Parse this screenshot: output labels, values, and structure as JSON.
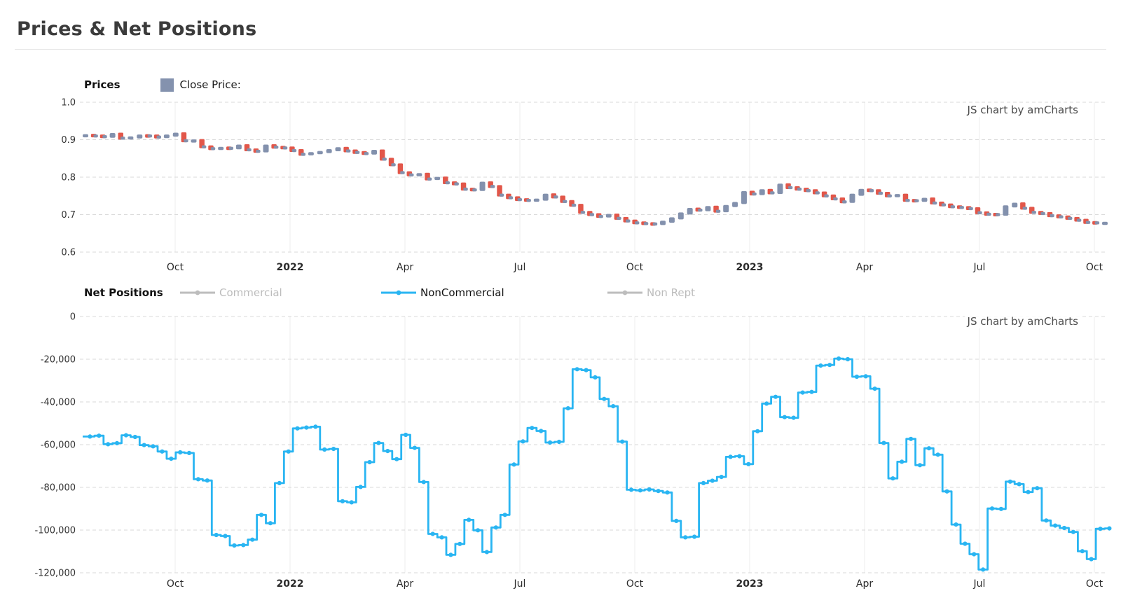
{
  "page": {
    "title": "Prices & Net Positions"
  },
  "watermark_label": "JS chart by amCharts",
  "price_chart": {
    "label": "Prices",
    "legend": [
      {
        "label": "Close Price:",
        "color": "#8492ae"
      }
    ],
    "chart_data": {
      "type": "candlestick",
      "title": "Prices",
      "x_tick_labels": [
        "Oct",
        "2022",
        "Apr",
        "Jul",
        "Oct",
        "2023",
        "Apr",
        "Jul",
        "Oct"
      ],
      "y_ticks": [
        1.0,
        0.9,
        0.8,
        0.7,
        0.6
      ],
      "y_tick_labels": [
        "1.0",
        "0.9",
        "0.8",
        "0.7",
        "0.6"
      ],
      "ylim": [
        0.6,
        1.0
      ],
      "x_range_note": "weekly data, Aug 2021 - Oct 2023",
      "up_color": "#8391ad",
      "down_color": "#e25649",
      "series": [
        {
          "name": "Close Price",
          "values": [
            0.912,
            0.91,
            0.908,
            0.915,
            0.904,
            0.906,
            0.911,
            0.91,
            0.907,
            0.911,
            0.916,
            0.897,
            0.898,
            0.881,
            0.876,
            0.878,
            0.877,
            0.884,
            0.873,
            0.869,
            0.884,
            0.88,
            0.878,
            0.871,
            0.861,
            0.864,
            0.867,
            0.872,
            0.877,
            0.87,
            0.866,
            0.863,
            0.87,
            0.848,
            0.833,
            0.812,
            0.806,
            0.808,
            0.795,
            0.798,
            0.785,
            0.782,
            0.768,
            0.766,
            0.785,
            0.775,
            0.752,
            0.745,
            0.74,
            0.738,
            0.74,
            0.753,
            0.747,
            0.735,
            0.725,
            0.706,
            0.7,
            0.695,
            0.699,
            0.69,
            0.683,
            0.678,
            0.676,
            0.675,
            0.681,
            0.69,
            0.703,
            0.715,
            0.712,
            0.72,
            0.709,
            0.723,
            0.731,
            0.76,
            0.755,
            0.765,
            0.758,
            0.78,
            0.772,
            0.768,
            0.764,
            0.758,
            0.75,
            0.742,
            0.734,
            0.753,
            0.766,
            0.764,
            0.757,
            0.75,
            0.752,
            0.738,
            0.737,
            0.742,
            0.731,
            0.726,
            0.721,
            0.719,
            0.716,
            0.705,
            0.701,
            0.7,
            0.722,
            0.729,
            0.717,
            0.706,
            0.703,
            0.697,
            0.694,
            0.69,
            0.685,
            0.679,
            0.678,
            0.678
          ]
        }
      ]
    }
  },
  "positions_chart": {
    "label": "Net Positions",
    "legend": [
      {
        "label": "Commercial",
        "color": "#bdbdbd",
        "active": false
      },
      {
        "label": "NonCommercial",
        "color": "#29b5f2",
        "active": true
      },
      {
        "label": "Non Rept",
        "color": "#bdbdbd",
        "active": false
      }
    ],
    "chart_data": {
      "type": "line",
      "step": true,
      "title": "Net Positions",
      "x_tick_labels": [
        "Oct",
        "2022",
        "Apr",
        "Jul",
        "Oct",
        "2023",
        "Apr",
        "Jul",
        "Oct"
      ],
      "y_ticks": [
        0,
        -20000,
        -40000,
        -60000,
        -80000,
        -100000,
        -120000
      ],
      "y_tick_labels": [
        "0",
        "-20,000",
        "-40,000",
        "-60,000",
        "-80,000",
        "-100,000",
        "-120,000"
      ],
      "ylim": [
        -120000,
        0
      ],
      "x_range_note": "weekly data, Aug 2021 - Oct 2023",
      "color": "#29b5f2",
      "series": [
        {
          "name": "NonCommercial",
          "values": [
            -56200,
            -55800,
            -59800,
            -59300,
            -55600,
            -56400,
            -60200,
            -60800,
            -63200,
            -66600,
            -63600,
            -63900,
            -76200,
            -76800,
            -102300,
            -102800,
            -107200,
            -107000,
            -104500,
            -92900,
            -96800,
            -78000,
            -63200,
            -52400,
            -52000,
            -51600,
            -62300,
            -62000,
            -86500,
            -87000,
            -79800,
            -68200,
            -59200,
            -63000,
            -66800,
            -55400,
            -61500,
            -77500,
            -101800,
            -103400,
            -111600,
            -106500,
            -95200,
            -100100,
            -110300,
            -98800,
            -92900,
            -69300,
            -58500,
            -52200,
            -53600,
            -59000,
            -58700,
            -43000,
            -24700,
            -25100,
            -28500,
            -38600,
            -42000,
            -58600,
            -81100,
            -81400,
            -81000,
            -81700,
            -82400,
            -95700,
            -103400,
            -103100,
            -78000,
            -76900,
            -75100,
            -65700,
            -65400,
            -69100,
            -53700,
            -40800,
            -37600,
            -47100,
            -47400,
            -35600,
            -35300,
            -23000,
            -22700,
            -19700,
            -20000,
            -28200,
            -28000,
            -33800,
            -59200,
            -75800,
            -68000,
            -57300,
            -69600,
            -61700,
            -64700,
            -81900,
            -97400,
            -106400,
            -111300,
            -118500,
            -89900,
            -90100,
            -77300,
            -78500,
            -82200,
            -80400,
            -95500,
            -97900,
            -99000,
            -100900,
            -109900,
            -113600,
            -99400,
            -99200
          ]
        }
      ]
    }
  }
}
